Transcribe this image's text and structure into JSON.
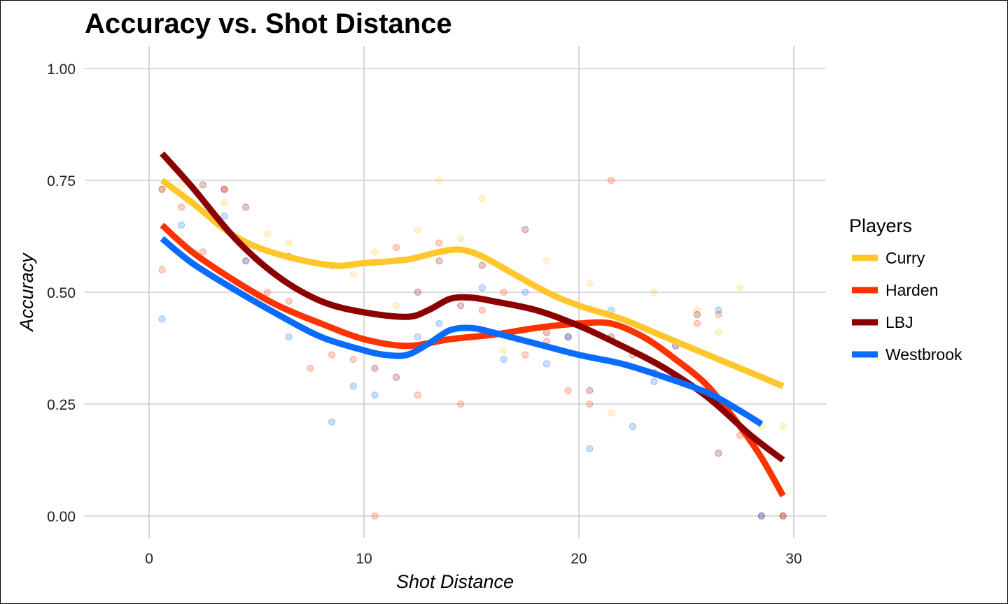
{
  "chart_data": {
    "type": "line",
    "title": "Accuracy vs. Shot Distance",
    "xlabel": "Shot Distance",
    "ylabel": "Accuracy",
    "xlim": [
      -3,
      31.5
    ],
    "ylim": [
      -0.05,
      1.05
    ],
    "x_ticks": [
      0,
      10,
      20,
      30
    ],
    "x_tick_labels": [
      "0",
      "10",
      "20",
      "30"
    ],
    "y_ticks": [
      0,
      0.25,
      0.5,
      0.75,
      1.0
    ],
    "y_tick_labels": [
      "0.00",
      "0.25",
      "0.50",
      "0.75",
      "1.00"
    ],
    "grid": true,
    "legend": {
      "title": "Players",
      "position": "right"
    },
    "series": [
      {
        "name": "Curry",
        "color": "#FFC72C",
        "smooth": [
          [
            0.6,
            0.75
          ],
          [
            2,
            0.7
          ],
          [
            4,
            0.625
          ],
          [
            6,
            0.585
          ],
          [
            8.5,
            0.56
          ],
          [
            10,
            0.565
          ],
          [
            12,
            0.573
          ],
          [
            13.5,
            0.59
          ],
          [
            14.5,
            0.595
          ],
          [
            15.5,
            0.58
          ],
          [
            17,
            0.54
          ],
          [
            18.5,
            0.5
          ],
          [
            20,
            0.47
          ],
          [
            22,
            0.44
          ],
          [
            24,
            0.4
          ],
          [
            26,
            0.36
          ],
          [
            28,
            0.32
          ],
          [
            29.5,
            0.29
          ]
        ],
        "points": [
          [
            0.6,
            0.73
          ],
          [
            1.5,
            0.74
          ],
          [
            3.5,
            0.7
          ],
          [
            5.5,
            0.63
          ],
          [
            6.5,
            0.61
          ],
          [
            9.5,
            0.54
          ],
          [
            10.5,
            0.59
          ],
          [
            11.5,
            0.47
          ],
          [
            12.5,
            0.64
          ],
          [
            13.5,
            0.75
          ],
          [
            14.5,
            0.62
          ],
          [
            15.5,
            0.71
          ],
          [
            16.5,
            0.37
          ],
          [
            18.5,
            0.57
          ],
          [
            20.5,
            0.52
          ],
          [
            21.5,
            0.23
          ],
          [
            23.5,
            0.5
          ],
          [
            25.5,
            0.46
          ],
          [
            26.5,
            0.41
          ],
          [
            27.5,
            0.51
          ],
          [
            28.5,
            0.2
          ],
          [
            29.5,
            0.2
          ]
        ]
      },
      {
        "name": "Harden",
        "color": "#FF3300",
        "smooth": [
          [
            0.6,
            0.65
          ],
          [
            2,
            0.59
          ],
          [
            4,
            0.525
          ],
          [
            6,
            0.47
          ],
          [
            8,
            0.43
          ],
          [
            10,
            0.395
          ],
          [
            12,
            0.38
          ],
          [
            14,
            0.395
          ],
          [
            16,
            0.405
          ],
          [
            18,
            0.42
          ],
          [
            20,
            0.43
          ],
          [
            21.5,
            0.43
          ],
          [
            23,
            0.4
          ],
          [
            24.5,
            0.35
          ],
          [
            26,
            0.29
          ],
          [
            27.5,
            0.2
          ],
          [
            28.5,
            0.13
          ],
          [
            29.5,
            0.045
          ]
        ],
        "points": [
          [
            0.6,
            0.55
          ],
          [
            1.5,
            0.69
          ],
          [
            2.5,
            0.59
          ],
          [
            3.5,
            0.73
          ],
          [
            4.5,
            0.57
          ],
          [
            5.5,
            0.5
          ],
          [
            6.5,
            0.48
          ],
          [
            7.5,
            0.33
          ],
          [
            8.5,
            0.36
          ],
          [
            9.5,
            0.35
          ],
          [
            10.5,
            0.0
          ],
          [
            11.5,
            0.6
          ],
          [
            12.5,
            0.27
          ],
          [
            13.5,
            0.61
          ],
          [
            14.5,
            0.25
          ],
          [
            15.5,
            0.46
          ],
          [
            16.5,
            0.5
          ],
          [
            17.5,
            0.36
          ],
          [
            18.5,
            0.39
          ],
          [
            19.5,
            0.28
          ],
          [
            20.5,
            0.25
          ],
          [
            21.5,
            0.75
          ],
          [
            22.5,
            0.36
          ],
          [
            24.5,
            0.38
          ],
          [
            25.5,
            0.43
          ],
          [
            26.5,
            0.45
          ],
          [
            27.5,
            0.18
          ],
          [
            29.5,
            0.0
          ]
        ]
      },
      {
        "name": "LBJ",
        "color": "#8B0000",
        "smooth": [
          [
            0.6,
            0.81
          ],
          [
            2,
            0.735
          ],
          [
            4,
            0.62
          ],
          [
            6,
            0.535
          ],
          [
            8,
            0.48
          ],
          [
            10,
            0.455
          ],
          [
            12,
            0.445
          ],
          [
            13,
            0.46
          ],
          [
            14,
            0.485
          ],
          [
            15,
            0.488
          ],
          [
            16,
            0.48
          ],
          [
            18,
            0.46
          ],
          [
            20,
            0.425
          ],
          [
            22,
            0.38
          ],
          [
            24,
            0.33
          ],
          [
            26,
            0.265
          ],
          [
            28,
            0.18
          ],
          [
            29.5,
            0.125
          ]
        ],
        "points": [
          [
            0.6,
            0.73
          ],
          [
            2.5,
            0.74
          ],
          [
            3.5,
            0.73
          ],
          [
            4.5,
            0.69
          ],
          [
            6.5,
            0.58
          ],
          [
            8.5,
            0.56
          ],
          [
            10.5,
            0.33
          ],
          [
            11.5,
            0.31
          ],
          [
            12.5,
            0.5
          ],
          [
            13.5,
            0.57
          ],
          [
            14.5,
            0.47
          ],
          [
            15.5,
            0.56
          ],
          [
            17.5,
            0.64
          ],
          [
            18.5,
            0.41
          ],
          [
            19.5,
            0.4
          ],
          [
            20.5,
            0.28
          ],
          [
            21.5,
            0.4
          ],
          [
            23.5,
            0.32
          ],
          [
            25.5,
            0.45
          ],
          [
            26.5,
            0.14
          ],
          [
            28.5,
            0.0
          ],
          [
            29.5,
            0.0
          ]
        ]
      },
      {
        "name": "Westbrook",
        "color": "#0A6CFF",
        "smooth": [
          [
            0.6,
            0.62
          ],
          [
            2,
            0.565
          ],
          [
            4,
            0.505
          ],
          [
            6,
            0.45
          ],
          [
            8,
            0.4
          ],
          [
            10,
            0.37
          ],
          [
            11,
            0.36
          ],
          [
            12,
            0.36
          ],
          [
            13,
            0.385
          ],
          [
            14,
            0.415
          ],
          [
            15,
            0.42
          ],
          [
            16,
            0.41
          ],
          [
            18,
            0.385
          ],
          [
            20,
            0.36
          ],
          [
            22,
            0.34
          ],
          [
            24,
            0.31
          ],
          [
            26,
            0.275
          ],
          [
            27.5,
            0.235
          ],
          [
            28.5,
            0.205
          ]
        ],
        "points": [
          [
            0.6,
            0.44
          ],
          [
            1.5,
            0.65
          ],
          [
            3.5,
            0.67
          ],
          [
            4.5,
            0.57
          ],
          [
            6.5,
            0.4
          ],
          [
            8.5,
            0.21
          ],
          [
            9.5,
            0.29
          ],
          [
            10.5,
            0.27
          ],
          [
            12.5,
            0.4
          ],
          [
            13.5,
            0.43
          ],
          [
            15.5,
            0.51
          ],
          [
            16.5,
            0.35
          ],
          [
            17.5,
            0.5
          ],
          [
            18.5,
            0.34
          ],
          [
            19.5,
            0.4
          ],
          [
            20.5,
            0.15
          ],
          [
            21.5,
            0.46
          ],
          [
            22.5,
            0.2
          ],
          [
            23.5,
            0.3
          ],
          [
            24.5,
            0.38
          ],
          [
            26.5,
            0.46
          ],
          [
            28.5,
            0.0
          ]
        ]
      }
    ]
  }
}
